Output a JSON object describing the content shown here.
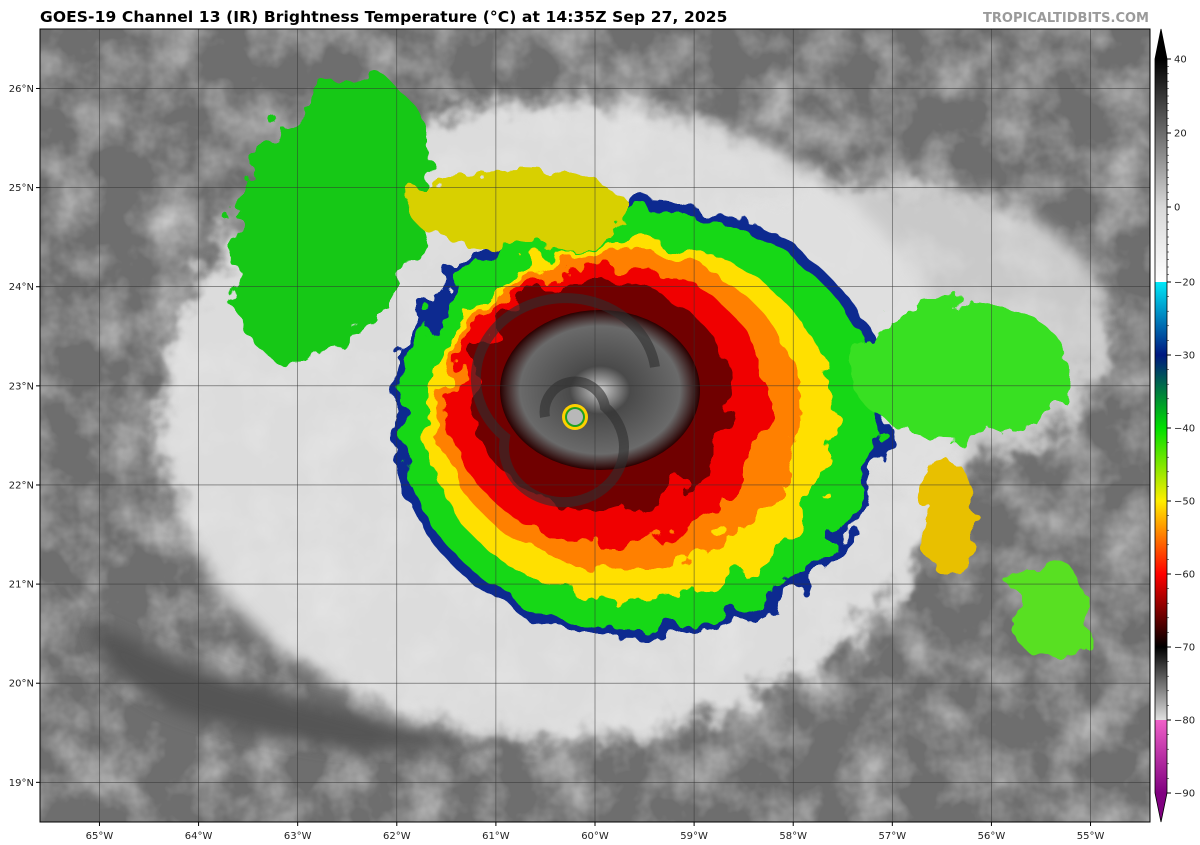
{
  "title": "GOES-19 Channel 13 (IR) Brightness Temperature (°C) at 14:35Z Sep 27, 2025",
  "watermark": "TROPICALTIDBITS.COM",
  "map": {
    "lon_range": [
      -65.6,
      -54.4
    ],
    "lat_range": [
      18.6,
      26.6
    ],
    "grid": true,
    "lon_ticks": [
      {
        "value": -65,
        "label": "65°W"
      },
      {
        "value": -64,
        "label": "64°W"
      },
      {
        "value": -63,
        "label": "63°W"
      },
      {
        "value": -62,
        "label": "62°W"
      },
      {
        "value": -61,
        "label": "61°W"
      },
      {
        "value": -60,
        "label": "60°W"
      },
      {
        "value": -59,
        "label": "59°W"
      },
      {
        "value": -58,
        "label": "58°W"
      },
      {
        "value": -57,
        "label": "57°W"
      },
      {
        "value": -56,
        "label": "56°W"
      },
      {
        "value": -55,
        "label": "55°W"
      }
    ],
    "lat_ticks": [
      {
        "value": 19,
        "label": "19°N"
      },
      {
        "value": 20,
        "label": "20°N"
      },
      {
        "value": 21,
        "label": "21°N"
      },
      {
        "value": 22,
        "label": "22°N"
      },
      {
        "value": 23,
        "label": "23°N"
      },
      {
        "value": 24,
        "label": "24°N"
      },
      {
        "value": 25,
        "label": "25°N"
      },
      {
        "value": 26,
        "label": "26°N"
      }
    ],
    "storm_center": {
      "lon": -60.25,
      "lat": 22.7
    }
  },
  "colorbar": {
    "range": [
      -90,
      40
    ],
    "ticks": [
      "40",
      "20",
      "0",
      "−20",
      "−30",
      "−40",
      "−50",
      "−60",
      "−70",
      "−80",
      "−90"
    ],
    "tick_values": [
      40,
      20,
      0,
      -20,
      -30,
      -40,
      -50,
      -60,
      -70,
      -80,
      -90
    ],
    "stops": [
      {
        "value": 40,
        "color": "#000000"
      },
      {
        "value": 0,
        "color": "#d8d8d8"
      },
      {
        "value": -20,
        "color": "#ffffff"
      },
      {
        "value": -20.01,
        "color": "#00e8f8"
      },
      {
        "value": -30,
        "color": "#001880"
      },
      {
        "value": -40,
        "color": "#00e000"
      },
      {
        "value": -50,
        "color": "#ffee00"
      },
      {
        "value": -60,
        "color": "#ff0000"
      },
      {
        "value": -70,
        "color": "#000000"
      },
      {
        "value": -80,
        "color": "#e0e0e0"
      },
      {
        "value": -80.01,
        "color": "#f060c8"
      },
      {
        "value": -90,
        "color": "#800080"
      }
    ]
  }
}
